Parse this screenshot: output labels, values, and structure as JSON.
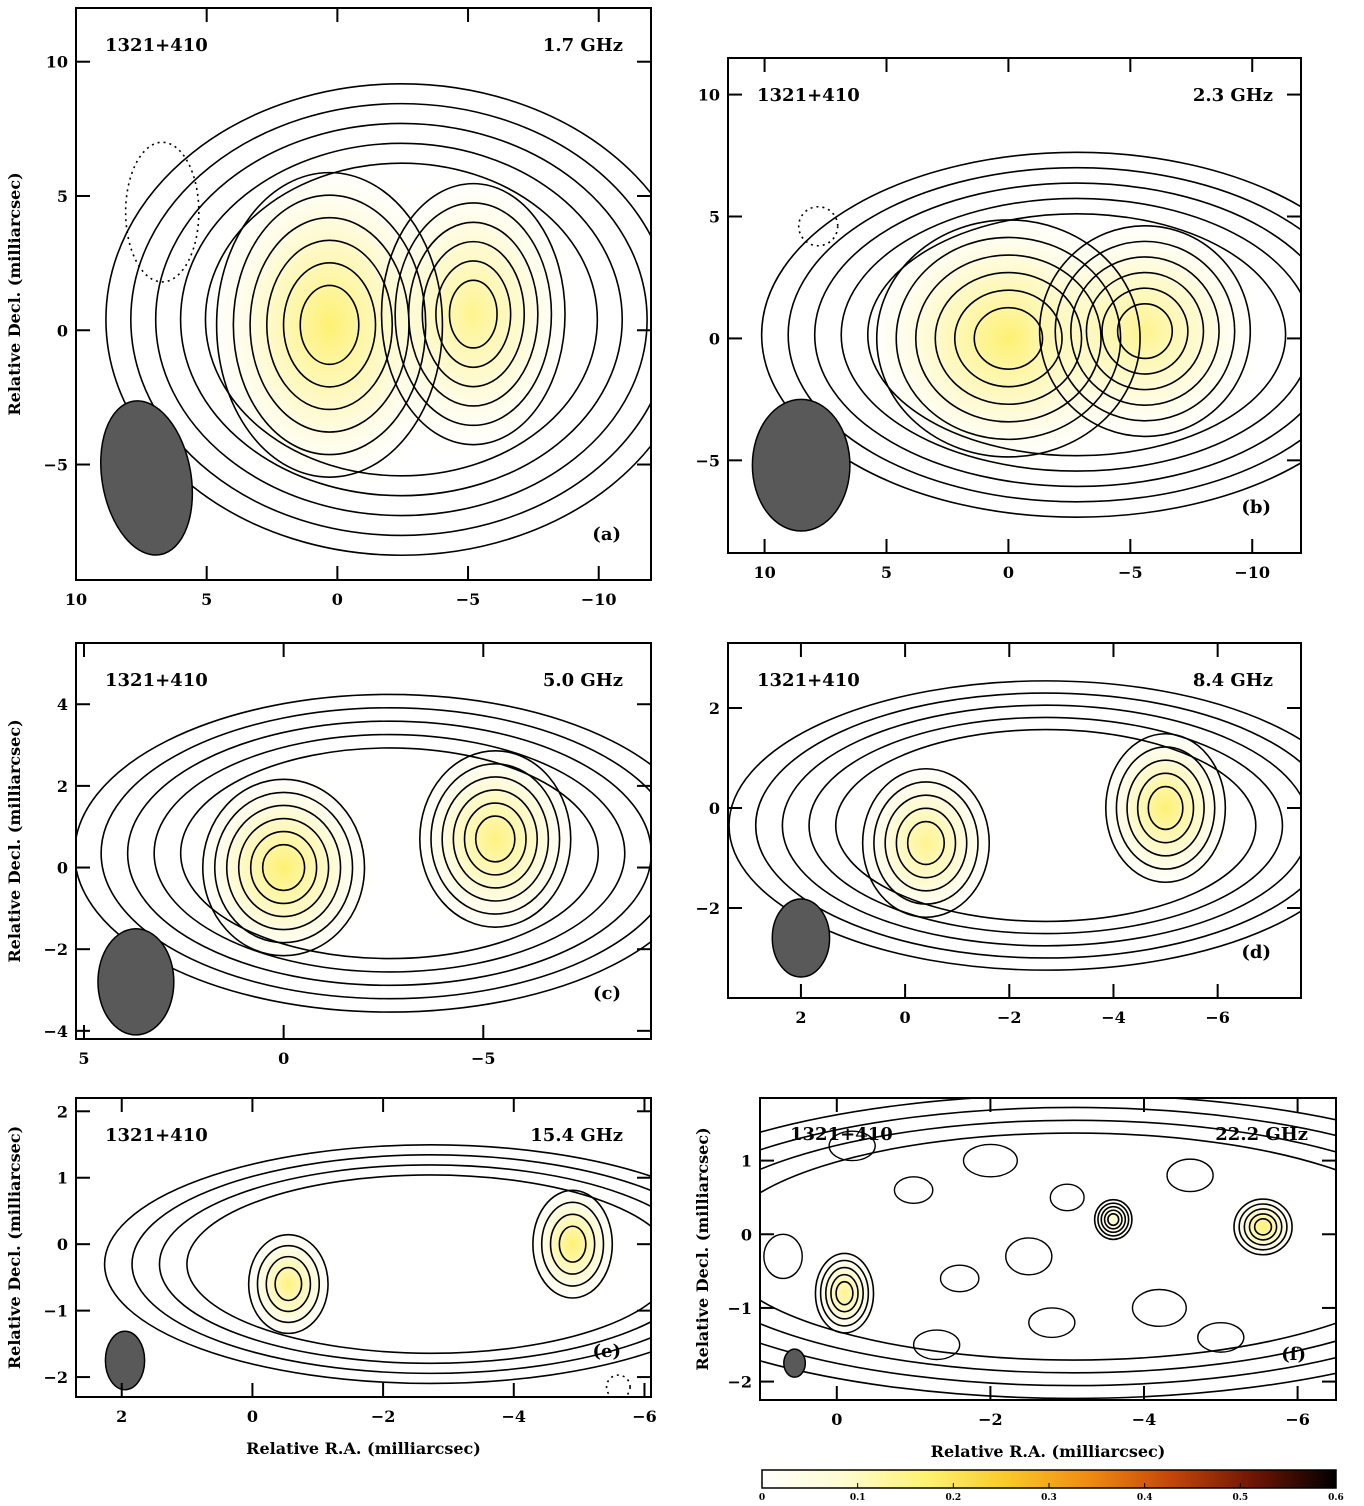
{
  "chart_data": [
    {
      "type": "heatmap",
      "panel_label": "(a)",
      "source": "1321+410",
      "frequency": "1.7 GHz",
      "xlim": [
        10,
        -12
      ],
      "ylim": [
        -9.3,
        12
      ],
      "xticks": [
        {
          "v": 10,
          "t": "10"
        },
        {
          "v": 5,
          "t": "5"
        },
        {
          "v": 0,
          "t": "0"
        },
        {
          "v": -5,
          "t": "−5"
        },
        {
          "v": -10,
          "t": "−10"
        }
      ],
      "yticks": [
        {
          "v": 10,
          "t": "10"
        },
        {
          "v": 5,
          "t": "5"
        },
        {
          "v": 0,
          "t": "0"
        },
        {
          "v": -5,
          "t": "−5"
        }
      ],
      "xlabel": "",
      "ylabel": "Relative Decl. (milliarcsec)",
      "components": [
        {
          "x": 0.3,
          "y": 0.2,
          "sx": 3.2,
          "sy": 4.2,
          "amp": 1.0
        },
        {
          "x": -5.2,
          "y": 0.6,
          "sx": 2.6,
          "sy": 3.6,
          "amp": 0.8
        }
      ],
      "beam": {
        "x": 7.3,
        "y": -5.5,
        "rx": 1.7,
        "ry": 2.9,
        "angle_deg": -10
      },
      "contour_count": 11,
      "negative_contours": [
        {
          "x": 6.7,
          "y": 4.4,
          "rx": 1.4,
          "ry": 2.6
        }
      ]
    },
    {
      "type": "heatmap",
      "panel_label": "(b)",
      "source": "1321+410",
      "frequency": "2.3 GHz",
      "xlim": [
        11.5,
        -12
      ],
      "ylim": [
        -8.8,
        11.5
      ],
      "xticks": [
        {
          "v": 10,
          "t": "10"
        },
        {
          "v": 5,
          "t": "5"
        },
        {
          "v": 0,
          "t": "0"
        },
        {
          "v": -5,
          "t": "−5"
        },
        {
          "v": -10,
          "t": "−10"
        }
      ],
      "yticks": [
        {
          "v": 10,
          "t": "10"
        },
        {
          "v": 5,
          "t": "5"
        },
        {
          "v": 0,
          "t": "0"
        },
        {
          "v": -5,
          "t": "−5"
        }
      ],
      "xlabel": "",
      "ylabel": "",
      "components": [
        {
          "x": 0.0,
          "y": 0.0,
          "sx": 4.0,
          "sy": 3.6,
          "amp": 1.0
        },
        {
          "x": -5.6,
          "y": 0.3,
          "sx": 3.2,
          "sy": 3.2,
          "amp": 0.8
        }
      ],
      "beam": {
        "x": 8.5,
        "y": -5.2,
        "rx": 2.0,
        "ry": 2.7,
        "angle_deg": 0
      },
      "contour_count": 11,
      "negative_contours": [
        {
          "x": 7.8,
          "y": 4.6,
          "rx": 0.8,
          "ry": 0.8
        }
      ]
    },
    {
      "type": "heatmap",
      "panel_label": "(c)",
      "source": "1321+410",
      "frequency": "5.0 GHz",
      "xlim": [
        5.2,
        -9.2
      ],
      "ylim": [
        -4.2,
        5.5
      ],
      "xticks": [
        {
          "v": 5,
          "t": "5"
        },
        {
          "v": 0,
          "t": "0"
        },
        {
          "v": -5,
          "t": "−5"
        }
      ],
      "yticks": [
        {
          "v": 4,
          "t": "4"
        },
        {
          "v": 2,
          "t": "2"
        },
        {
          "v": 0,
          "t": "0"
        },
        {
          "v": -2,
          "t": "−2"
        },
        {
          "v": -4,
          "t": "−4"
        }
      ],
      "xlabel": "",
      "ylabel": "Relative Decl. (milliarcsec)",
      "components": [
        {
          "x": 0.0,
          "y": 0.0,
          "sx": 1.5,
          "sy": 1.6,
          "amp": 1.0
        },
        {
          "x": -5.3,
          "y": 0.7,
          "sx": 1.4,
          "sy": 1.6,
          "amp": 0.9
        }
      ],
      "beam": {
        "x": 3.7,
        "y": -2.8,
        "rx": 0.95,
        "ry": 1.3,
        "angle_deg": 0
      },
      "contour_count": 11,
      "negative_contours": []
    },
    {
      "type": "heatmap",
      "panel_label": "(d)",
      "source": "1321+410",
      "frequency": "8.4 GHz",
      "xlim": [
        3.4,
        -7.6
      ],
      "ylim": [
        -3.8,
        3.3
      ],
      "xticks": [
        {
          "v": 2,
          "t": "2"
        },
        {
          "v": 0,
          "t": "0"
        },
        {
          "v": -2,
          "t": "−2"
        },
        {
          "v": -4,
          "t": "−4"
        },
        {
          "v": -6,
          "t": "−6"
        }
      ],
      "yticks": [
        {
          "v": 2,
          "t": "2"
        },
        {
          "v": 0,
          "t": "0"
        },
        {
          "v": -2,
          "t": "−2"
        }
      ],
      "xlabel": "",
      "ylabel": "",
      "components": [
        {
          "x": -0.4,
          "y": -0.7,
          "sx": 0.9,
          "sy": 1.1,
          "amp": 0.8
        },
        {
          "x": -5.0,
          "y": 0.0,
          "sx": 0.85,
          "sy": 1.1,
          "amp": 1.0
        }
      ],
      "beam": {
        "x": 2.0,
        "y": -2.6,
        "rx": 0.55,
        "ry": 0.78,
        "angle_deg": 0
      },
      "contour_count": 10,
      "negative_contours": []
    },
    {
      "type": "heatmap",
      "panel_label": "(e)",
      "source": "1321+410",
      "frequency": "15.4 GHz",
      "xlim": [
        2.7,
        -6.1
      ],
      "ylim": [
        -2.3,
        2.2
      ],
      "xticks": [
        {
          "v": 2,
          "t": "2"
        },
        {
          "v": 0,
          "t": "0"
        },
        {
          "v": -2,
          "t": "−2"
        },
        {
          "v": -4,
          "t": "−4"
        },
        {
          "v": -6,
          "t": "−6"
        }
      ],
      "yticks": [
        {
          "v": 2,
          "t": "2"
        },
        {
          "v": 1,
          "t": "1"
        },
        {
          "v": 0,
          "t": "0"
        },
        {
          "v": -1,
          "t": "−1"
        },
        {
          "v": -2,
          "t": "−2"
        }
      ],
      "xlabel": "Relative R.A. (milliarcsec)",
      "ylabel": "Relative Decl. (milliarcsec)",
      "components": [
        {
          "x": -0.55,
          "y": -0.6,
          "sx": 0.45,
          "sy": 0.55,
          "amp": 0.9
        },
        {
          "x": -4.9,
          "y": 0.0,
          "sx": 0.45,
          "sy": 0.6,
          "amp": 1.0
        }
      ],
      "beam": {
        "x": 1.95,
        "y": -1.75,
        "rx": 0.3,
        "ry": 0.44,
        "angle_deg": 0
      },
      "contour_count": 8,
      "negative_contours": [
        {
          "x": -5.6,
          "y": -2.15,
          "rx": 0.18,
          "ry": 0.18
        }
      ]
    },
    {
      "type": "heatmap",
      "panel_label": "(f)",
      "source": "1321+410",
      "frequency": "22.2 GHz",
      "xlim": [
        1.0,
        -6.5
      ],
      "ylim": [
        -2.25,
        1.85
      ],
      "xticks": [
        {
          "v": 0,
          "t": "0"
        },
        {
          "v": -2,
          "t": "−2"
        },
        {
          "v": -4,
          "t": "−4"
        },
        {
          "v": -6,
          "t": "−6"
        }
      ],
      "yticks": [
        {
          "v": 1,
          "t": "1"
        },
        {
          "v": 0,
          "t": "0"
        },
        {
          "v": -1,
          "t": "−1"
        },
        {
          "v": -2,
          "t": "−2"
        }
      ],
      "xlabel": "Relative R.A. (milliarcsec)",
      "ylabel": "Relative Decl. (milliarcsec)",
      "components": [
        {
          "x": -0.1,
          "y": -0.8,
          "sx": 0.28,
          "sy": 0.4,
          "amp": 0.8
        },
        {
          "x": -3.6,
          "y": 0.2,
          "sx": 0.18,
          "sy": 0.2,
          "amp": 0.35
        },
        {
          "x": -5.55,
          "y": 0.1,
          "sx": 0.28,
          "sy": 0.28,
          "amp": 1.0
        }
      ],
      "beam": {
        "x": 0.55,
        "y": -1.75,
        "rx": 0.14,
        "ry": 0.19,
        "angle_deg": 0
      },
      "contour_count": 9,
      "noise_contours": [
        {
          "x": -0.2,
          "y": 1.2,
          "rx": 0.3,
          "ry": 0.2
        },
        {
          "x": -1.0,
          "y": 0.6,
          "rx": 0.25,
          "ry": 0.18
        },
        {
          "x": -2.0,
          "y": 1.0,
          "rx": 0.35,
          "ry": 0.22
        },
        {
          "x": -2.5,
          "y": -0.3,
          "rx": 0.3,
          "ry": 0.25
        },
        {
          "x": -1.6,
          "y": -0.6,
          "rx": 0.25,
          "ry": 0.18
        },
        {
          "x": -2.8,
          "y": -1.2,
          "rx": 0.3,
          "ry": 0.2
        },
        {
          "x": -4.6,
          "y": 0.8,
          "rx": 0.3,
          "ry": 0.22
        },
        {
          "x": -4.2,
          "y": -1.0,
          "rx": 0.35,
          "ry": 0.25
        },
        {
          "x": -3.0,
          "y": 0.5,
          "rx": 0.22,
          "ry": 0.18
        },
        {
          "x": -5.0,
          "y": -1.4,
          "rx": 0.3,
          "ry": 0.2
        },
        {
          "x": -1.3,
          "y": -1.5,
          "rx": 0.3,
          "ry": 0.2
        },
        {
          "x": 0.7,
          "y": -0.3,
          "rx": 0.25,
          "ry": 0.3
        }
      ]
    }
  ],
  "colorbar": {
    "ticks": [
      "0",
      "0.1",
      "0.2",
      "0.3",
      "0.4",
      "0.5",
      "0.6"
    ],
    "range": [
      0,
      0.6
    ],
    "colors": [
      "#ffffff",
      "#fefcd0",
      "#fdf370",
      "#f9c82a",
      "#ef8a10",
      "#c44508",
      "#6e1504",
      "#000000"
    ]
  }
}
